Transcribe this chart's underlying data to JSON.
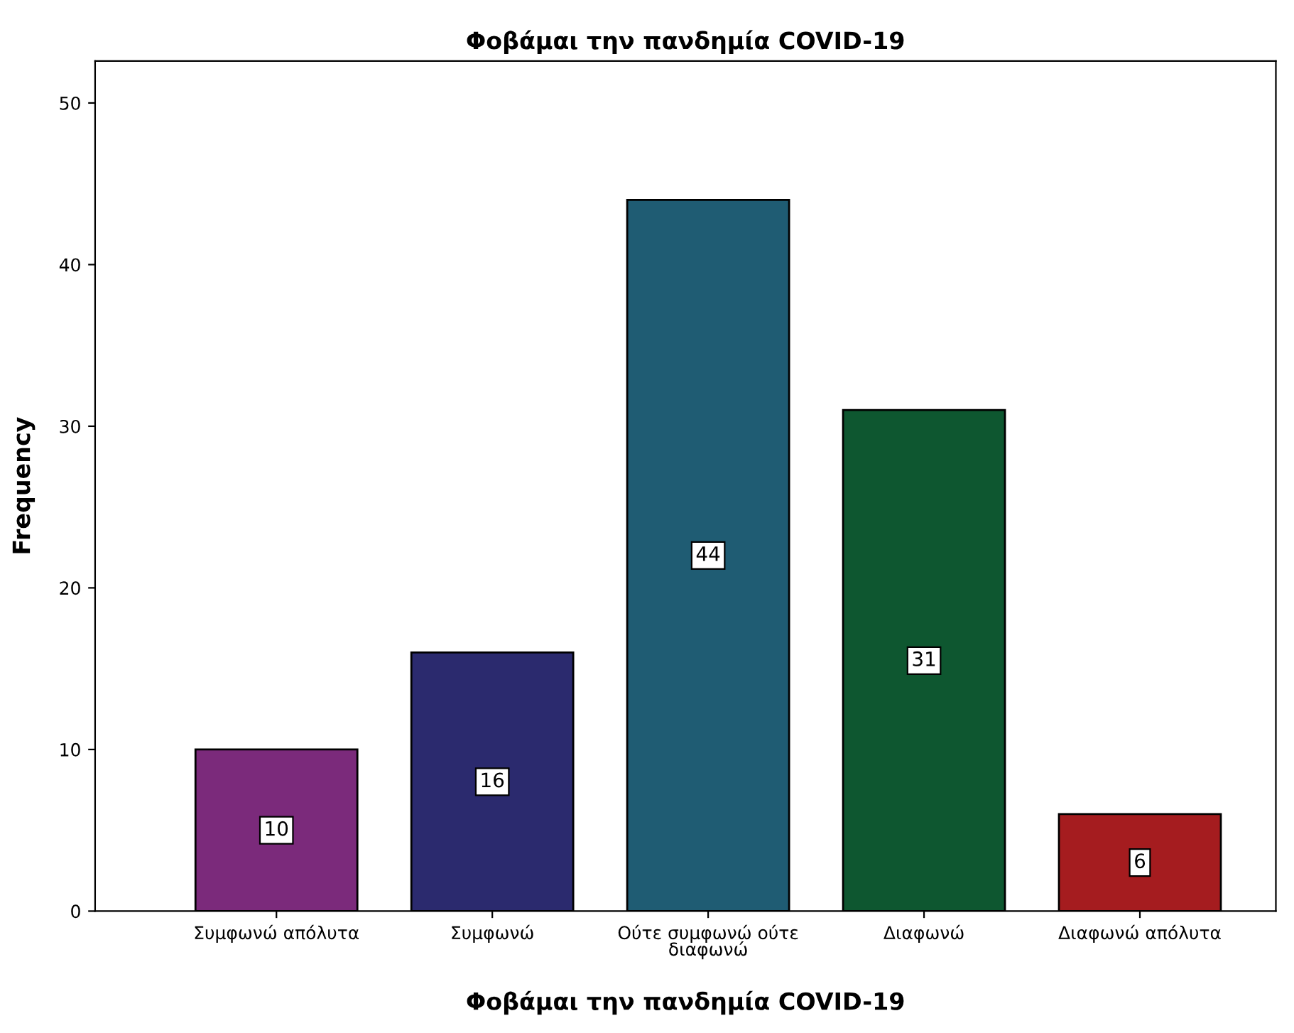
{
  "chart_data": {
    "type": "bar",
    "title": "Φοβάμαι την πανδημία COVID-19",
    "xlabel": "Φοβάμαι την πανδημία COVID-19",
    "ylabel": "Frequency",
    "categories": [
      "Συμφωνώ απόλυτα",
      "Συμφωνώ",
      "Ούτε συμφωνώ ούτε διαφωνώ",
      "Διαφωνώ",
      "Διαφωνώ απόλυτα"
    ],
    "values": [
      10,
      16,
      44,
      31,
      6
    ],
    "colors": [
      "#7b2a7b",
      "#2b2a6e",
      "#1f5c73",
      "#0e5730",
      "#a51c1f"
    ],
    "ylim": [
      0,
      52.6
    ],
    "yticks": [
      0,
      10,
      20,
      30,
      40,
      50
    ],
    "grid": false,
    "legend": false,
    "data_labels": true
  }
}
